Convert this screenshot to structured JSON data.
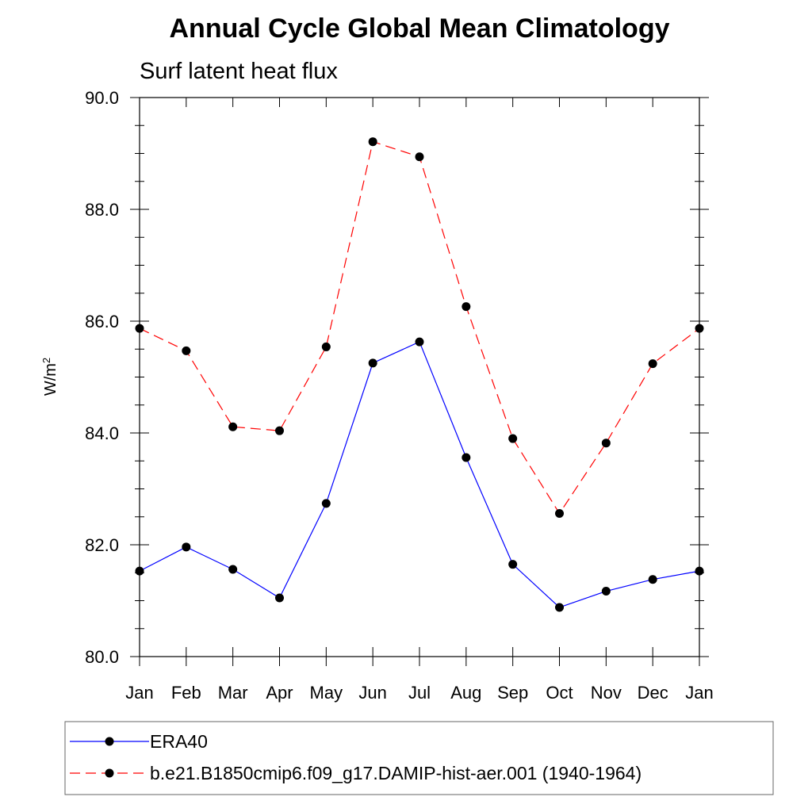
{
  "chart_data": {
    "type": "line",
    "title": "Annual Cycle Global Mean Climatology",
    "subtitle": "Surf latent heat flux",
    "ylabel_base": "W/m",
    "ylabel_sup": "2",
    "ylim": [
      80.0,
      90.0
    ],
    "yticks": [
      "80.0",
      "82.0",
      "84.0",
      "86.0",
      "88.0",
      "90.0"
    ],
    "categories": [
      "Jan",
      "Feb",
      "Mar",
      "Apr",
      "May",
      "Jun",
      "Jul",
      "Aug",
      "Sep",
      "Oct",
      "Nov",
      "Dec",
      "Jan"
    ],
    "grid": false,
    "legend_position": "bottom",
    "series": [
      {
        "name": "ERA40",
        "color": "#0000ff",
        "style": "solid",
        "marker": "filled-circle",
        "values": [
          81.53,
          81.96,
          81.56,
          81.05,
          82.74,
          85.25,
          85.63,
          83.56,
          81.65,
          80.88,
          81.17,
          81.38,
          81.53
        ]
      },
      {
        "name": "b.e21.B1850cmip6.f09_g17.DAMIP-hist-aer.001 (1940-1964)",
        "color": "#ff0000",
        "style": "dashed",
        "marker": "filled-circle",
        "values": [
          85.87,
          85.47,
          84.11,
          84.04,
          85.54,
          89.21,
          88.94,
          86.26,
          83.9,
          82.56,
          83.82,
          85.24,
          85.87
        ]
      }
    ]
  }
}
